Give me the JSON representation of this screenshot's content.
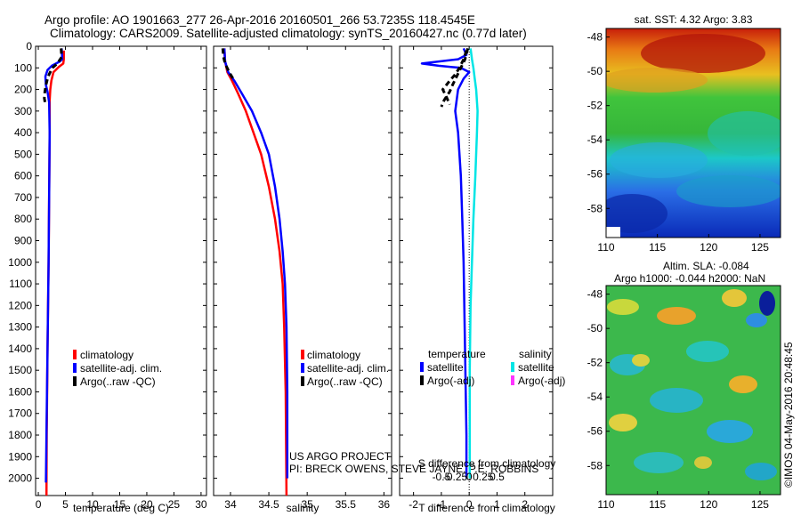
{
  "header": {
    "line1": "Argo profile: AO 1901663_277 26-Apr-2016 20160501_266 53.7235S 118.4545E",
    "line2": "Climatology: CARS2009. Satellite-adjusted climatology: synTS_20160427.nc (0.77d later)"
  },
  "colors": {
    "climatology": "#ff0000",
    "satellite": "#0000ff",
    "argo": "#000000",
    "sal_satellite": "#00e5e5",
    "sal_argo": "#ff33ff"
  },
  "chart_data": [
    {
      "type": "line",
      "id": "temperature",
      "xlabel": "temperature (deg C)",
      "xlim": [
        -0.5,
        31
      ],
      "xticks": [
        0,
        5,
        10,
        15,
        20,
        25,
        30
      ],
      "ylim": [
        0,
        2080
      ],
      "yticks": [
        0,
        100,
        200,
        300,
        400,
        500,
        600,
        700,
        800,
        900,
        1000,
        1100,
        1200,
        1300,
        1400,
        1500,
        1600,
        1700,
        1800,
        1900,
        2000
      ],
      "legend": [
        "climatology",
        "satellite-adj. clim.",
        "Argo(..raw -QC)"
      ],
      "series": [
        {
          "name": "climatology",
          "color": "#ff0000",
          "points": [
            [
              4.7,
              20
            ],
            [
              4.7,
              60
            ],
            [
              4.6,
              80
            ],
            [
              3.8,
              95
            ],
            [
              2.8,
              120
            ],
            [
              2.4,
              160
            ],
            [
              2.2,
              200
            ],
            [
              2.1,
              250
            ],
            [
              2.1,
              400
            ],
            [
              2.0,
              700
            ],
            [
              1.9,
              1000
            ],
            [
              1.7,
              1400
            ],
            [
              1.55,
              1800
            ],
            [
              1.5,
              2080
            ]
          ]
        },
        {
          "name": "satellite-adj. clim.",
          "color": "#0000ff",
          "points": [
            [
              4.3,
              10
            ],
            [
              4.4,
              60
            ],
            [
              4.0,
              70
            ],
            [
              2.5,
              90
            ],
            [
              1.7,
              110
            ],
            [
              1.3,
              140
            ],
            [
              1.4,
              180
            ],
            [
              1.7,
              210
            ],
            [
              2.0,
              260
            ],
            [
              2.1,
              400
            ],
            [
              2.0,
              700
            ],
            [
              1.9,
              1000
            ],
            [
              1.7,
              1400
            ],
            [
              1.5,
              1800
            ],
            [
              1.4,
              2020
            ]
          ]
        },
        {
          "name": "Argo(..raw -QC)",
          "color": "#000000",
          "points": [
            [
              4.2,
              10
            ],
            [
              4.3,
              50
            ],
            [
              3.5,
              80
            ],
            [
              2.6,
              100
            ],
            [
              2.0,
              130
            ],
            [
              1.7,
              150
            ],
            [
              1.4,
              180
            ],
            [
              1.2,
              210
            ],
            [
              1.1,
              240
            ],
            [
              1.3,
              270
            ]
          ]
        }
      ]
    },
    {
      "type": "line",
      "id": "salinity",
      "xlabel": "salinity",
      "xlim": [
        33.78,
        36.1
      ],
      "xticks": [
        34,
        34.5,
        35,
        35.5,
        36
      ],
      "ylim": [
        0,
        2080
      ],
      "legend": [
        "climatology",
        "satellite-adj. clim.",
        "Argo(..raw -QC)"
      ],
      "series": [
        {
          "name": "climatology",
          "color": "#ff0000",
          "points": [
            [
              33.92,
              10
            ],
            [
              33.93,
              70
            ],
            [
              33.96,
              120
            ],
            [
              34.02,
              160
            ],
            [
              34.1,
              220
            ],
            [
              34.2,
              300
            ],
            [
              34.3,
              400
            ],
            [
              34.4,
              500
            ],
            [
              34.5,
              650
            ],
            [
              34.58,
              800
            ],
            [
              34.64,
              950
            ],
            [
              34.68,
              1100
            ],
            [
              34.7,
              1300
            ],
            [
              34.72,
              1600
            ],
            [
              34.73,
              2080
            ]
          ]
        },
        {
          "name": "satellite-adj. clim.",
          "color": "#0000ff",
          "points": [
            [
              33.92,
              10
            ],
            [
              33.93,
              70
            ],
            [
              33.97,
              120
            ],
            [
              34.05,
              160
            ],
            [
              34.15,
              220
            ],
            [
              34.28,
              300
            ],
            [
              34.4,
              400
            ],
            [
              34.5,
              500
            ],
            [
              34.58,
              650
            ],
            [
              34.64,
              800
            ],
            [
              34.68,
              950
            ],
            [
              34.71,
              1100
            ],
            [
              34.73,
              1300
            ],
            [
              34.74,
              1600
            ],
            [
              34.74,
              2000
            ]
          ]
        },
        {
          "name": "Argo(..raw -QC)",
          "color": "#000000",
          "points": [
            [
              33.9,
              10
            ],
            [
              33.91,
              50
            ],
            [
              33.93,
              80
            ],
            [
              33.97,
              110
            ],
            [
              34.0,
              130
            ],
            [
              34.05,
              160
            ]
          ]
        }
      ]
    },
    {
      "type": "line",
      "id": "differences",
      "xlabel": "T difference from climatology",
      "xlim": [
        -2.5,
        3
      ],
      "xticks": [
        -2,
        -1,
        0,
        1,
        2
      ],
      "top_axis_label": "S difference from climatology",
      "top_xticks": [
        "-0.5",
        "-0.25",
        "0",
        "0.25",
        "0.5"
      ],
      "ylim": [
        0,
        2080
      ],
      "legend_groups": {
        "temperature": [
          "satellite",
          "Argo(-adj)"
        ],
        "salinity": [
          "satellite",
          "Argo(-adj)"
        ]
      },
      "series": [
        {
          "name": "temperature satellite",
          "color": "#0000ff",
          "points": [
            [
              -0.2,
              10
            ],
            [
              -0.1,
              40
            ],
            [
              -0.4,
              60
            ],
            [
              -1.7,
              80
            ],
            [
              -1.1,
              90
            ],
            [
              -0.3,
              100
            ],
            [
              0,
              120
            ],
            [
              -0.2,
              150
            ],
            [
              -0.4,
              200
            ],
            [
              -0.5,
              300
            ],
            [
              -0.4,
              400
            ],
            [
              -0.3,
              600
            ],
            [
              -0.25,
              800
            ],
            [
              -0.2,
              1000
            ],
            [
              -0.15,
              1400
            ],
            [
              -0.1,
              1800
            ],
            [
              -0.1,
              2000
            ]
          ]
        },
        {
          "name": "temperature Argo(-adj)",
          "color": "#000000",
          "points": [
            [
              -0.1,
              20
            ],
            [
              -0.2,
              60
            ],
            [
              -0.35,
              100
            ],
            [
              -0.5,
              130
            ],
            [
              -0.7,
              160
            ],
            [
              -0.95,
              200
            ],
            [
              -0.8,
              240
            ],
            [
              -0.7,
              270
            ]
          ]
        },
        {
          "name": "salinity satellite",
          "color": "#00e5e5",
          "points": [
            [
              0.05,
              10
            ],
            [
              0.1,
              60
            ],
            [
              0.15,
              100
            ],
            [
              0.2,
              150
            ],
            [
              0.25,
              200
            ],
            [
              0.3,
              300
            ],
            [
              0.28,
              400
            ],
            [
              0.22,
              600
            ],
            [
              0.15,
              800
            ],
            [
              0.1,
              1000
            ],
            [
              0.05,
              1200
            ],
            [
              0.02,
              1500
            ],
            [
              0.02,
              1800
            ],
            [
              0.02,
              2000
            ]
          ]
        },
        {
          "name": "salinity Argo(-adj)",
          "color": "#000000",
          "points": [
            [
              -0.05,
              10
            ],
            [
              -0.15,
              60
            ],
            [
              -0.3,
              100
            ],
            [
              -0.45,
              140
            ],
            [
              -0.6,
              180
            ],
            [
              -0.7,
              210
            ],
            [
              -0.9,
              250
            ],
            [
              -1.0,
              280
            ]
          ]
        }
      ]
    },
    {
      "type": "heatmap",
      "id": "sst_map",
      "title": "sat. SST: 4.32 Argo: 3.83",
      "xlim": [
        110,
        127
      ],
      "xticks": [
        110,
        115,
        120,
        125
      ],
      "ylim": [
        -59.7,
        -47.5
      ],
      "yticks": [
        -48,
        -50,
        -52,
        -54,
        -56,
        -58
      ]
    },
    {
      "type": "heatmap",
      "id": "sla_map",
      "title": "Altim. SLA: -0.084",
      "subtitle": "Argo h1000: -0.044 h2000: NaN",
      "xlim": [
        110,
        127
      ],
      "xticks": [
        110,
        115,
        120,
        125
      ],
      "ylim": [
        -59.7,
        -47.5
      ],
      "yticks": [
        -48,
        -50,
        -52,
        -54,
        -56,
        -58
      ]
    }
  ],
  "annotations": {
    "project": "US ARGO PROJECT",
    "pi": "PI: BRECK OWENS, STEVE JAYNE, P.E. ROBBINS",
    "credit": "©IMOS 04-May-2016 20:48:45"
  }
}
